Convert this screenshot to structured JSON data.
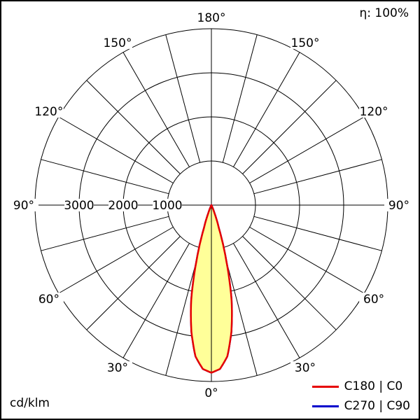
{
  "header": {
    "efficiency": "η: 100%"
  },
  "footer": {
    "unit": "cd/klm"
  },
  "legend": [
    {
      "label": "C180 | C0",
      "color": "#e60000"
    },
    {
      "label": "C270 | C90",
      "color": "#0000cc"
    }
  ],
  "chart_data": {
    "type": "line",
    "coordinate_system": "polar",
    "unit": "cd/klm",
    "efficiency_label": "η: 100%",
    "angle_tick_step_deg": 15,
    "angle_labels_deg": [
      0,
      30,
      60,
      90,
      120,
      150,
      180
    ],
    "angle_label_suffix": "°",
    "scale": {
      "ring_values": [
        1000,
        2000,
        3000,
        4000
      ],
      "labeled_ring_values": [
        3000,
        2000,
        1000
      ],
      "max_value": 4000
    },
    "series": [
      {
        "name": "C180 | C0",
        "color": "#e60000",
        "fill": "#ffff99",
        "symmetric": true,
        "gamma_deg": [
          0,
          3,
          6,
          9,
          12,
          15,
          18,
          21,
          24,
          27,
          30,
          90
        ],
        "values": [
          3800,
          3720,
          3450,
          2900,
          2200,
          1300,
          550,
          200,
          60,
          15,
          0,
          0
        ]
      },
      {
        "name": "C270 | C90",
        "color": "#0000cc",
        "symmetric": true,
        "gamma_deg": [
          0,
          3,
          6,
          9,
          12,
          15,
          18,
          21,
          24,
          27,
          30,
          90
        ],
        "values": [
          3800,
          3720,
          3450,
          2900,
          2200,
          1300,
          550,
          200,
          60,
          15,
          0,
          0
        ]
      }
    ]
  }
}
